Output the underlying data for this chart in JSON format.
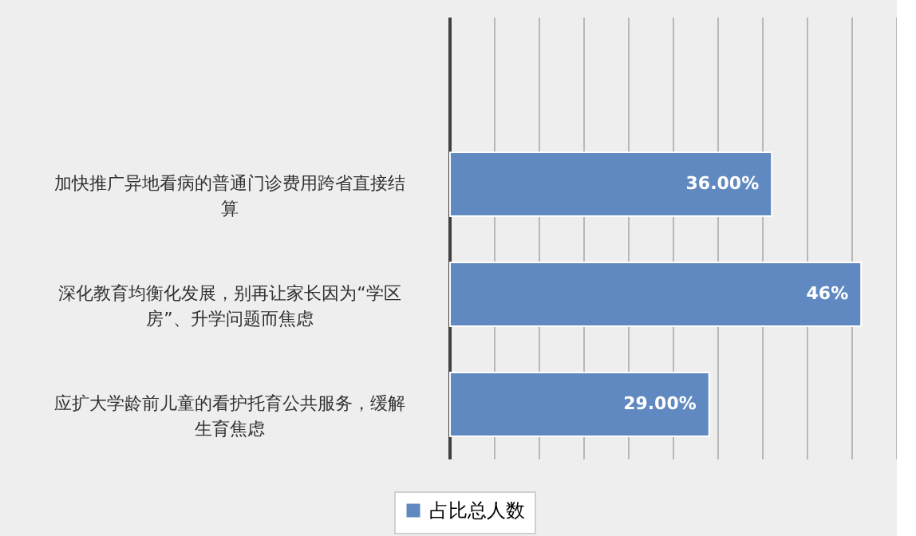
{
  "chart_data": {
    "type": "bar",
    "orientation": "horizontal",
    "categories": [
      "加快推广异地看病的普通门诊费用跨省直接结算",
      "深化教育均衡化发展，别再让家长因为“学区房”、升学问题而焦虑",
      "应扩大学龄前儿童的看护托育公共服务，缓解生育焦虑"
    ],
    "series": [
      {
        "name": "占比总人数",
        "color": "#6089c1",
        "values": [
          36,
          46,
          29
        ],
        "value_labels": [
          "36.00%",
          "46%",
          "29.00%"
        ]
      }
    ],
    "xlim": [
      0,
      50
    ],
    "xticks": [
      {
        "value": 0,
        "label": null
      },
      {
        "value": 5,
        "label": null
      },
      {
        "value": 10,
        "label": null
      },
      {
        "value": 15,
        "label": null
      },
      {
        "value": 20,
        "label": null
      },
      {
        "value": 25,
        "label": null
      },
      {
        "value": 30,
        "label": null
      },
      {
        "value": 35,
        "label": null
      },
      {
        "value": 40,
        "label": null
      },
      {
        "value": 45,
        "label": null
      },
      {
        "value": 50,
        "label": null
      }
    ],
    "tick_labels": "y",
    "grid": "x",
    "legend": "bottom"
  }
}
